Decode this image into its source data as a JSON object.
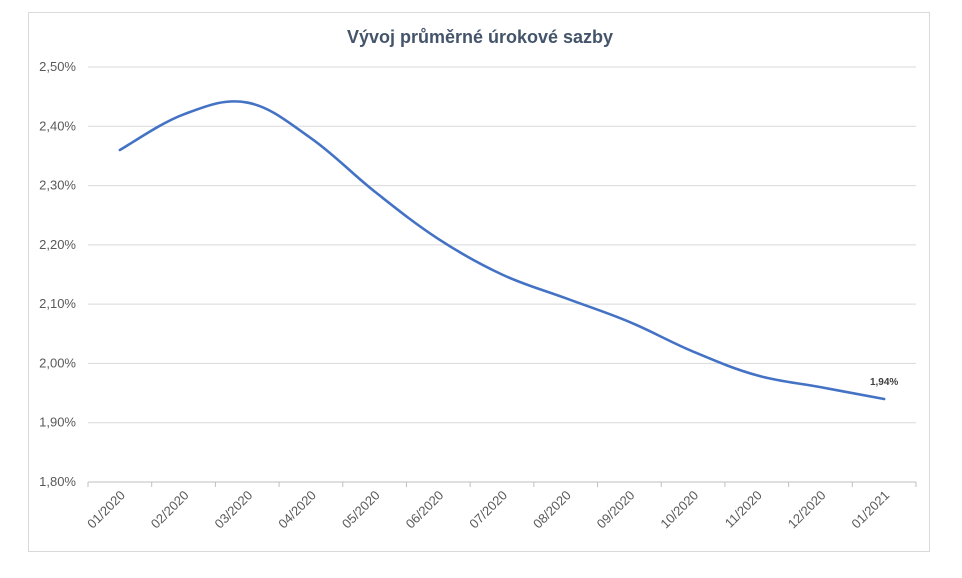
{
  "chart_data": {
    "type": "line",
    "title": "Vývoj průměrné úrokové sazby",
    "xlabel": "",
    "ylabel": "",
    "categories": [
      "01/2020",
      "02/2020",
      "03/2020",
      "04/2020",
      "05/2020",
      "06/2020",
      "07/2020",
      "08/2020",
      "09/2020",
      "10/2020",
      "11/2020",
      "12/2020",
      "01/2021"
    ],
    "series": [
      {
        "values": [
          2.36,
          2.42,
          2.44,
          2.38,
          2.29,
          2.21,
          2.15,
          2.11,
          2.07,
          2.02,
          1.98,
          1.96,
          1.94
        ]
      }
    ],
    "ylim": [
      1.8,
      2.5
    ],
    "yticks": [
      1.8,
      1.9,
      2.0,
      2.1,
      2.2,
      2.3,
      2.4,
      2.5
    ],
    "ytick_labels": [
      "1,80%",
      "1,90%",
      "2,00%",
      "2,10%",
      "2,20%",
      "2,30%",
      "2,40%",
      "2,50%"
    ],
    "data_labels": [
      {
        "index": 12,
        "text": "1,94%"
      }
    ],
    "grid": "horizontal",
    "legend": "none",
    "smooth": true,
    "colors": {
      "line": "#4472c4",
      "grid": "#d9d9d9",
      "title": "#44546a",
      "ticks": "#595959"
    }
  }
}
